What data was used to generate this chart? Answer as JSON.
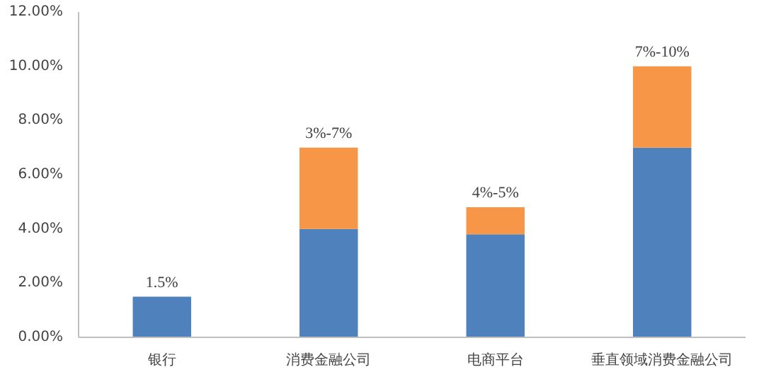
{
  "chart_data": {
    "type": "bar",
    "stacked": true,
    "categories": [
      "银行",
      "消费金融公司",
      "电商平台",
      "垂直领域消费金融公司"
    ],
    "series": [
      {
        "color": "#4f81bd",
        "values": [
          1.5,
          4.0,
          3.8,
          7.0
        ]
      },
      {
        "color": "#f79646",
        "values": [
          0,
          3.0,
          1.0,
          3.0
        ]
      }
    ],
    "totals": [
      "1.5%",
      "3%-7%",
      "4%-5%",
      "7%-10%"
    ],
    "ylim": [
      0,
      12
    ],
    "yticks": [
      {
        "value": 0,
        "label": "0.00%"
      },
      {
        "value": 2,
        "label": "2.00%"
      },
      {
        "value": 4,
        "label": "4.00%"
      },
      {
        "value": 6,
        "label": "6.00%"
      },
      {
        "value": 8,
        "label": "8.00%"
      },
      {
        "value": 10,
        "label": "10.00%"
      },
      {
        "value": 12,
        "label": "12.00%"
      }
    ],
    "grid": false
  }
}
